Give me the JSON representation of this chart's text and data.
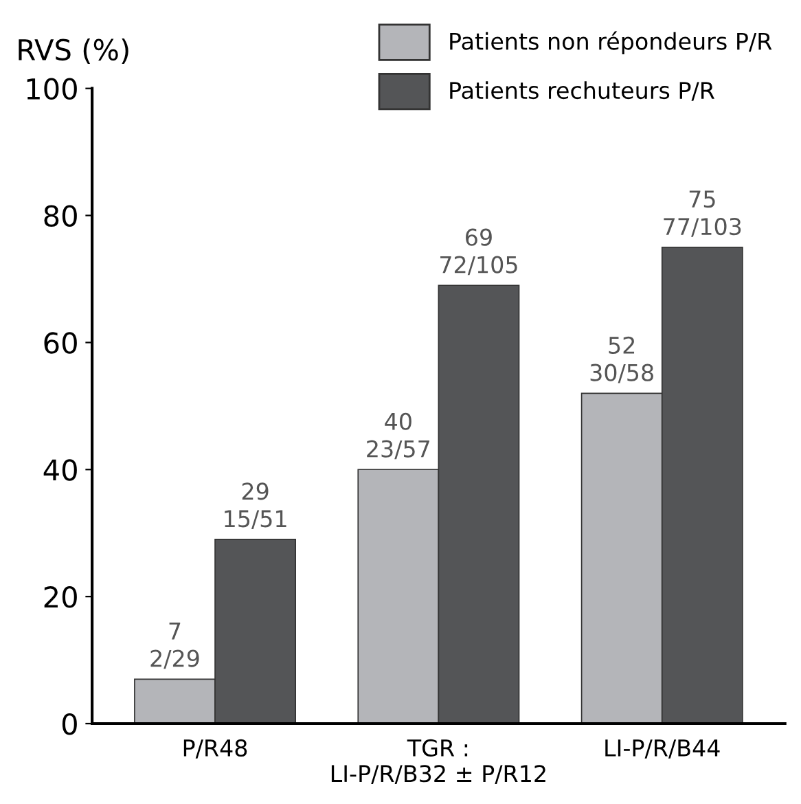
{
  "chart_data": {
    "type": "bar",
    "ylabel": "RVS (%)",
    "categories": [
      "P/R48",
      "TGR :\nLI-P/R/B32 ± P/R12",
      "LI-P/R/B44"
    ],
    "series": [
      {
        "name": "Patients non répondeurs P/R",
        "color": "#b4b5b9",
        "values": [
          7,
          40,
          52
        ],
        "value_labels": [
          "7\n2/29",
          "40\n23/57",
          "52\n30/58"
        ]
      },
      {
        "name": "Patients rechuteurs P/R",
        "color": "#545557",
        "values": [
          29,
          69,
          75
        ],
        "value_labels": [
          "29\n15/51",
          "69\n72/105",
          "75\n77/103"
        ]
      }
    ],
    "ylim": [
      0,
      100
    ],
    "yticks": [
      0,
      20,
      40,
      60,
      80,
      100
    ],
    "grid": false,
    "legend": "top right"
  }
}
